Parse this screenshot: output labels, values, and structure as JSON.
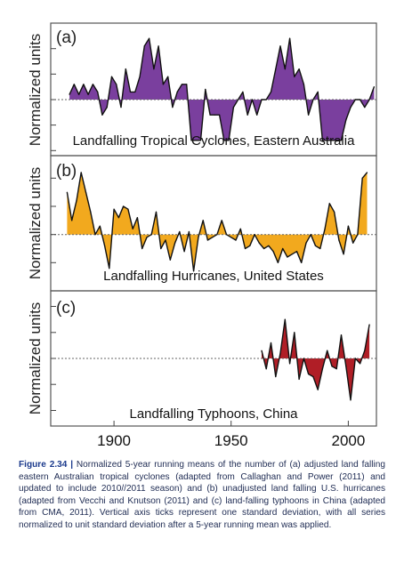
{
  "chart_data": {
    "type": "area",
    "shared_x_axis": {
      "range": [
        1873,
        2012
      ],
      "ticks": [
        1900,
        1950,
        2000
      ],
      "tick_labels": [
        "1900",
        "1950",
        "2000"
      ]
    },
    "panels": [
      {
        "letter": "(a)",
        "ylabel": "Normalized units",
        "title": "Landfalling Tropical Cyclones, Eastern Australia",
        "color_positive": "#7a3f9e",
        "color_negative": "#7a3f9e",
        "ylim": [
          -2.2,
          3.0
        ],
        "reference_line": 0,
        "x": [
          1881,
          1883,
          1885,
          1887,
          1889,
          1891,
          1893,
          1895,
          1897,
          1899,
          1901,
          1903,
          1905,
          1907,
          1909,
          1911,
          1913,
          1915,
          1917,
          1919,
          1921,
          1923,
          1925,
          1927,
          1929,
          1931,
          1933,
          1935,
          1937,
          1939,
          1941,
          1943,
          1945,
          1947,
          1949,
          1951,
          1953,
          1955,
          1957,
          1959,
          1961,
          1963,
          1965,
          1967,
          1969,
          1971,
          1973,
          1975,
          1977,
          1979,
          1981,
          1983,
          1985,
          1987,
          1989,
          1991,
          1993,
          1995,
          1997,
          1999,
          2001,
          2003,
          2005,
          2007,
          2009,
          2011
        ],
        "values": [
          0.2,
          0.6,
          0.2,
          0.6,
          0.2,
          0.6,
          0.3,
          -0.6,
          -0.3,
          0.9,
          0.6,
          -0.3,
          1.2,
          0.3,
          0.3,
          0.9,
          2.1,
          2.4,
          1.2,
          2.1,
          0.6,
          0.9,
          -0.3,
          0.3,
          0.6,
          0.6,
          -1.6,
          -1.6,
          -1.6,
          0.4,
          -0.6,
          -0.6,
          -0.6,
          -1.6,
          -1.6,
          -0.3,
          0.0,
          0.3,
          -0.6,
          0.0,
          -0.6,
          0.0,
          0.0,
          0.3,
          1.2,
          2.1,
          1.2,
          2.4,
          0.9,
          1.2,
          0.6,
          -0.6,
          0.0,
          0.3,
          -1.6,
          -1.6,
          -1.6,
          -1.6,
          -1.6,
          -0.8,
          -0.3,
          0.0,
          0.0,
          -0.3,
          0.0,
          0.5
        ]
      },
      {
        "letter": "(b)",
        "ylabel": "Normalized units",
        "title": "Landfalling Hurricanes, United States",
        "color_positive": "#f2a91e",
        "color_negative": "#f2a91e",
        "ylim": [
          -2.0,
          2.8
        ],
        "reference_line": 0,
        "x": [
          1880,
          1882,
          1884,
          1886,
          1888,
          1890,
          1892,
          1894,
          1896,
          1898,
          1900,
          1902,
          1904,
          1906,
          1908,
          1910,
          1912,
          1914,
          1916,
          1918,
          1920,
          1922,
          1924,
          1926,
          1928,
          1930,
          1932,
          1934,
          1936,
          1938,
          1940,
          1942,
          1944,
          1946,
          1948,
          1950,
          1952,
          1954,
          1956,
          1958,
          1960,
          1962,
          1964,
          1966,
          1968,
          1970,
          1972,
          1974,
          1976,
          1978,
          1980,
          1982,
          1984,
          1986,
          1988,
          1990,
          1992,
          1994,
          1996,
          1998,
          2000,
          2002,
          2004,
          2006,
          2008
        ],
        "values": [
          1.5,
          0.5,
          1.2,
          2.2,
          1.5,
          0.8,
          0.0,
          0.3,
          -0.4,
          -1.2,
          0.9,
          0.6,
          1.0,
          0.9,
          0.2,
          0.6,
          -0.5,
          -0.1,
          0.0,
          0.8,
          -0.5,
          -0.2,
          -0.9,
          -0.3,
          0.1,
          -0.6,
          0.1,
          -1.3,
          -0.1,
          0.5,
          -0.2,
          -0.1,
          0.0,
          0.5,
          0.0,
          -0.1,
          -0.2,
          0.2,
          -0.5,
          -0.4,
          0.0,
          -0.3,
          -0.5,
          -0.4,
          -0.6,
          -1.0,
          -0.5,
          -0.8,
          -0.7,
          -0.6,
          -1.0,
          -0.3,
          0.0,
          -0.4,
          -0.5,
          0.2,
          1.1,
          0.8,
          -0.2,
          -0.7,
          0.3,
          -0.3,
          0.0,
          2.0,
          2.2
        ]
      },
      {
        "letter": "(c)",
        "ylabel": "Normalized units",
        "title": "Landfalling Typhoons, China",
        "color_positive": "#b01e26",
        "color_negative": "#b01e26",
        "ylim": [
          -2.6,
          2.6
        ],
        "reference_line": 0,
        "x": [
          1963,
          1965,
          1967,
          1969,
          1971,
          1973,
          1975,
          1977,
          1979,
          1981,
          1983,
          1985,
          1987,
          1989,
          1991,
          1993,
          1995,
          1997,
          1999,
          2001,
          2003,
          2005,
          2007,
          2009
        ],
        "values": [
          0.3,
          -0.4,
          0.6,
          -0.7,
          0.2,
          1.5,
          -0.2,
          1.0,
          -0.8,
          0.0,
          -0.6,
          -0.7,
          -1.2,
          -0.4,
          0.3,
          -0.3,
          -0.4,
          0.9,
          -0.3,
          -1.6,
          0.0,
          -0.2,
          0.3,
          1.3
        ]
      }
    ]
  },
  "caption": {
    "figure_number": "Figure 2.34 |",
    "text": "Normalized 5-year running means of the number of (a) adjusted land falling eastern Australian tropical cyclones (adapted from Callaghan and Power (2011) and updated to include 2010//2011 season) and (b) unadjusted land falling U.S. hurricanes (adapted from Vecchi and Knutson (2011) and (c) land-falling typhoons in China (adapted from CMA, 2011). Vertical axis ticks represent one standard deviation, with all series normalized to unit standard deviation after a 5-year running mean was applied."
  }
}
